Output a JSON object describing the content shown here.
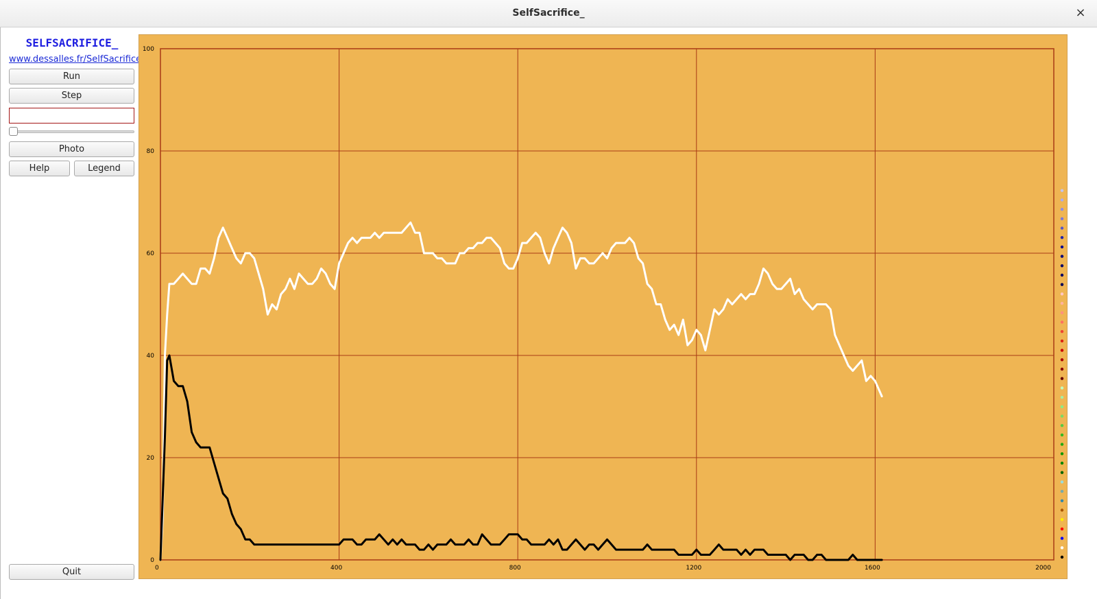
{
  "window": {
    "title": "SelfSacrifice_",
    "close_label": "×"
  },
  "sidebar": {
    "app_title": "SELFSACRIFICE_",
    "link": "www.dessalles.fr/SelfSacrifice_",
    "run_label": "Run",
    "step_label": "Step",
    "speed_value": "",
    "slider_value": 0,
    "photo_label": "Photo",
    "help_label": "Help",
    "legend_label": "Legend",
    "quit_label": "Quit"
  },
  "colors": {
    "plot_bg": "#efb553",
    "grid": "#a83a14",
    "white_series": "#ffffff",
    "black_series": "#000000"
  },
  "chart_data": {
    "type": "line",
    "title": "",
    "xlabel": "",
    "ylabel": "",
    "xlim": [
      0,
      2000
    ],
    "ylim": [
      0,
      100
    ],
    "x_ticks": [
      0,
      400,
      800,
      1200,
      1600,
      2000
    ],
    "y_ticks": [
      0,
      20,
      40,
      60,
      80,
      100
    ],
    "series": [
      {
        "name": "white",
        "color": "#ffffff",
        "x": [
          0,
          5,
          10,
          15,
          20,
          30,
          40,
          50,
          60,
          70,
          80,
          90,
          100,
          110,
          120,
          130,
          140,
          150,
          160,
          170,
          180,
          190,
          200,
          210,
          220,
          230,
          240,
          250,
          260,
          270,
          280,
          290,
          300,
          310,
          320,
          330,
          340,
          350,
          360,
          370,
          380,
          390,
          400,
          410,
          420,
          430,
          440,
          450,
          460,
          470,
          480,
          490,
          500,
          510,
          520,
          530,
          540,
          550,
          560,
          570,
          580,
          590,
          600,
          610,
          620,
          630,
          640,
          650,
          660,
          670,
          680,
          690,
          700,
          710,
          720,
          730,
          740,
          750,
          760,
          770,
          780,
          790,
          800,
          810,
          820,
          830,
          840,
          850,
          860,
          870,
          880,
          890,
          900,
          910,
          920,
          930,
          940,
          950,
          960,
          970,
          980,
          990,
          1000,
          1010,
          1020,
          1030,
          1040,
          1050,
          1060,
          1070,
          1080,
          1090,
          1100,
          1110,
          1120,
          1130,
          1140,
          1150,
          1160,
          1170,
          1180,
          1190,
          1200,
          1210,
          1220,
          1230,
          1240,
          1250,
          1260,
          1270,
          1280,
          1290,
          1300,
          1310,
          1320,
          1330,
          1340,
          1350,
          1360,
          1370,
          1380,
          1390,
          1400,
          1410,
          1420,
          1430,
          1440,
          1450,
          1460,
          1470,
          1480,
          1490,
          1500,
          1510,
          1520,
          1530,
          1540,
          1550,
          1560,
          1570,
          1580,
          1590,
          1600,
          1610,
          1615
        ],
        "values": [
          0,
          8,
          40,
          48,
          54,
          54,
          55,
          56,
          55,
          54,
          54,
          57,
          57,
          56,
          59,
          63,
          65,
          63,
          61,
          59,
          58,
          60,
          60,
          59,
          56,
          53,
          48,
          50,
          49,
          52,
          53,
          55,
          53,
          56,
          55,
          54,
          54,
          55,
          57,
          56,
          54,
          53,
          58,
          60,
          62,
          63,
          62,
          63,
          63,
          63,
          64,
          63,
          64,
          64,
          64,
          64,
          64,
          65,
          66,
          64,
          64,
          60,
          60,
          60,
          59,
          59,
          58,
          58,
          58,
          60,
          60,
          61,
          61,
          62,
          62,
          63,
          63,
          62,
          61,
          58,
          57,
          57,
          59,
          62,
          62,
          63,
          64,
          63,
          60,
          58,
          61,
          63,
          65,
          64,
          62,
          57,
          59,
          59,
          58,
          58,
          59,
          60,
          59,
          61,
          62,
          62,
          62,
          63,
          62,
          59,
          58,
          54,
          53,
          50,
          50,
          47,
          45,
          46,
          44,
          47,
          42,
          43,
          45,
          44,
          41,
          45,
          49,
          48,
          49,
          51,
          50,
          51,
          52,
          51,
          52,
          52,
          54,
          57,
          56,
          54,
          53,
          53,
          54,
          55,
          52,
          53,
          51,
          50,
          49,
          50,
          50,
          50,
          49,
          44,
          42,
          40,
          38,
          37,
          38,
          39,
          35,
          36,
          35,
          33,
          32
        ]
      },
      {
        "name": "black",
        "color": "#000000",
        "x": [
          0,
          5,
          10,
          15,
          20,
          30,
          40,
          50,
          60,
          70,
          80,
          90,
          100,
          110,
          120,
          130,
          140,
          150,
          160,
          170,
          180,
          190,
          200,
          210,
          220,
          230,
          240,
          250,
          260,
          280,
          300,
          320,
          340,
          360,
          380,
          390,
          400,
          410,
          420,
          430,
          440,
          450,
          460,
          470,
          480,
          490,
          500,
          510,
          520,
          530,
          540,
          550,
          560,
          570,
          580,
          590,
          600,
          610,
          620,
          630,
          640,
          650,
          660,
          670,
          680,
          690,
          700,
          710,
          720,
          730,
          740,
          750,
          760,
          770,
          780,
          790,
          800,
          810,
          820,
          830,
          840,
          850,
          860,
          870,
          880,
          890,
          900,
          910,
          920,
          930,
          940,
          950,
          960,
          970,
          980,
          990,
          1000,
          1010,
          1020,
          1030,
          1040,
          1050,
          1060,
          1070,
          1080,
          1090,
          1100,
          1110,
          1120,
          1130,
          1140,
          1150,
          1160,
          1170,
          1180,
          1190,
          1200,
          1210,
          1220,
          1230,
          1240,
          1250,
          1260,
          1270,
          1280,
          1290,
          1300,
          1310,
          1320,
          1330,
          1340,
          1350,
          1360,
          1370,
          1380,
          1390,
          1400,
          1410,
          1420,
          1430,
          1440,
          1450,
          1460,
          1470,
          1480,
          1490,
          1500,
          1510,
          1520,
          1530,
          1540,
          1550,
          1560,
          1570,
          1580,
          1590,
          1600,
          1610,
          1615
        ],
        "values": [
          0,
          12,
          24,
          39,
          40,
          35,
          34,
          34,
          31,
          25,
          23,
          22,
          22,
          22,
          19,
          16,
          13,
          12,
          9,
          7,
          6,
          4,
          4,
          3,
          3,
          3,
          3,
          3,
          3,
          3,
          3,
          3,
          3,
          3,
          3,
          3,
          3,
          4,
          4,
          4,
          3,
          3,
          4,
          4,
          4,
          5,
          4,
          3,
          4,
          3,
          4,
          3,
          3,
          3,
          2,
          2,
          3,
          2,
          3,
          3,
          3,
          4,
          3,
          3,
          3,
          4,
          3,
          3,
          5,
          4,
          3,
          3,
          3,
          4,
          5,
          5,
          5,
          4,
          4,
          3,
          3,
          3,
          3,
          4,
          3,
          4,
          2,
          2,
          3,
          4,
          3,
          2,
          3,
          3,
          2,
          3,
          4,
          3,
          2,
          2,
          2,
          2,
          2,
          2,
          2,
          3,
          2,
          2,
          2,
          2,
          2,
          2,
          1,
          1,
          1,
          1,
          2,
          1,
          1,
          1,
          2,
          3,
          2,
          2,
          2,
          2,
          1,
          2,
          1,
          2,
          2,
          2,
          1,
          1,
          1,
          1,
          1,
          0,
          1,
          1,
          1,
          0,
          0,
          1,
          1,
          0,
          0,
          0,
          0,
          0,
          0,
          1,
          0,
          0,
          0,
          0,
          0,
          0,
          0
        ]
      }
    ],
    "legend_dot_colors": [
      "#c3c3ee",
      "#aaaaee",
      "#8d8de6",
      "#7777dd",
      "#5555cc",
      "#2222aa",
      "#0a0a90",
      "#00007a",
      "#00006a",
      "#000066",
      "#000055",
      "#ffc8c8",
      "#ffb3a0",
      "#ff9080",
      "#ff7060",
      "#ee4433",
      "#dd2211",
      "#cc0000",
      "#aa0000",
      "#880000",
      "#660000",
      "#bfffbf",
      "#a4f0a4",
      "#88ee88",
      "#77dd66",
      "#55cc44",
      "#33bb22",
      "#22aa11",
      "#119900",
      "#008800",
      "#006600",
      "#99dddd",
      "#77aaaa",
      "#3388aa",
      "#aa5500",
      "#ffee00",
      "#ff0000",
      "#0000ff",
      "#ffffff",
      "#000000"
    ]
  }
}
